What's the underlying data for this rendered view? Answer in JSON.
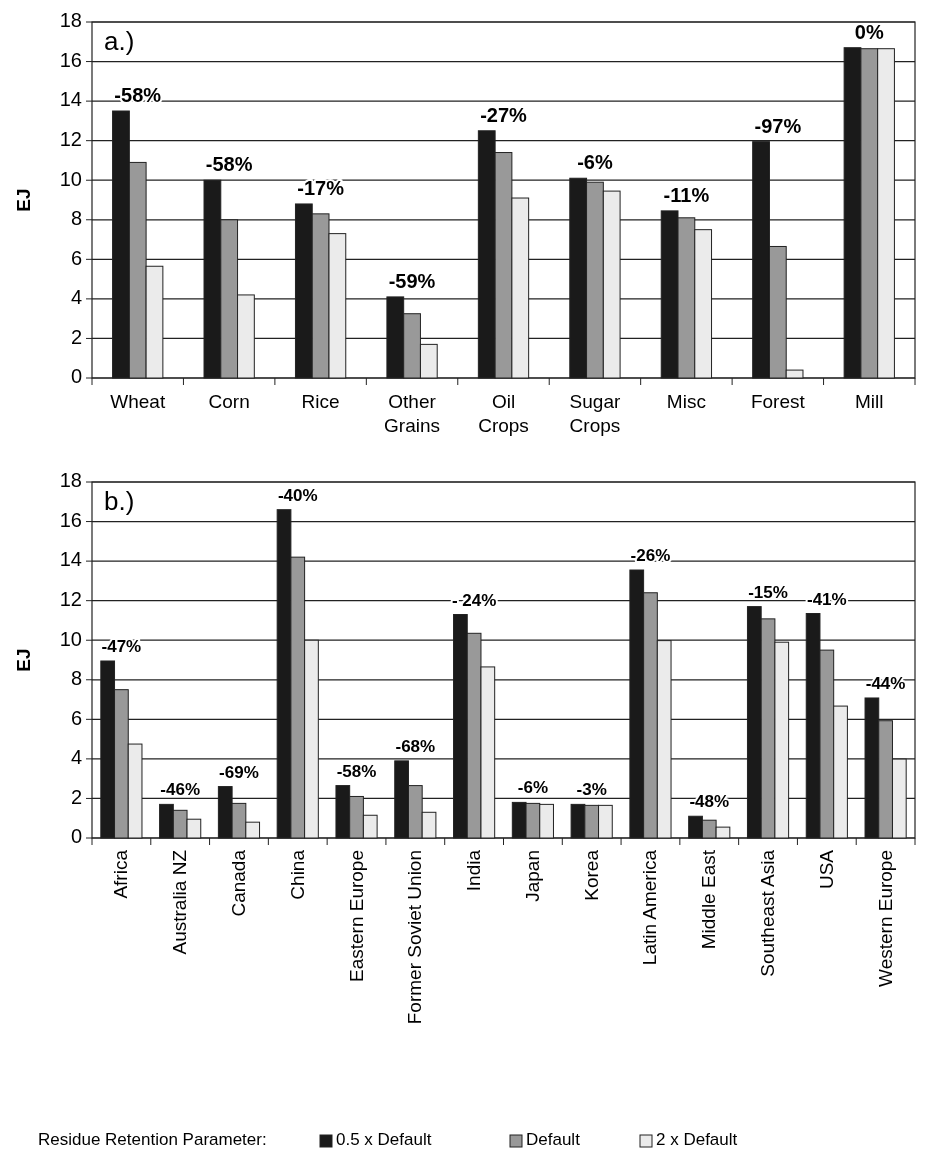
{
  "chart_data": [
    {
      "type": "bar",
      "ylabel": "EJ",
      "categories": [
        "Wheat",
        "Corn",
        "Rice",
        "Other Grains",
        "Oil Crops",
        "Sugar Crops",
        "Misc",
        "Forest",
        "Mill"
      ],
      "series": [
        {
          "color": "#1a1a1a",
          "values": [
            13.5,
            10.0,
            8.8,
            4.1,
            12.5,
            10.1,
            8.45,
            11.95,
            16.7
          ]
        },
        {
          "color": "#999999",
          "values": [
            10.9,
            8.0,
            8.3,
            3.25,
            11.4,
            9.9,
            8.1,
            6.65,
            16.65
          ]
        },
        {
          "color": "#ebebeb",
          "values": [
            5.65,
            4.2,
            7.3,
            1.7,
            9.1,
            9.45,
            7.5,
            0.4,
            16.65
          ]
        }
      ],
      "ylim": [
        0,
        18
      ],
      "yticks": [
        0,
        2,
        4,
        6,
        8,
        10,
        12,
        14,
        16,
        18
      ],
      "grid": "y",
      "legend": false,
      "annotations": [
        "a.)",
        "-58%",
        "-58%",
        "-17%",
        "-59%",
        "-27%",
        "-6%",
        "-11%",
        "-97%",
        "0%"
      ]
    },
    {
      "type": "bar",
      "ylabel": "EJ",
      "categories": [
        "Africa",
        "Australia NZ",
        "Canada",
        "China",
        "Eastern Europe",
        "Former Soviet Union",
        "India",
        "Japan",
        "Korea",
        "Latin America",
        "Middle East",
        "Southeast Asia",
        "USA",
        "Western Europe"
      ],
      "series": [
        {
          "name": "0.5 x Default",
          "color": "#1a1a1a",
          "values": [
            8.95,
            1.7,
            2.6,
            16.6,
            2.65,
            3.9,
            11.3,
            1.8,
            1.7,
            13.55,
            1.1,
            11.7,
            11.35,
            7.08
          ]
        },
        {
          "name": "Default",
          "color": "#999999",
          "values": [
            7.5,
            1.4,
            1.75,
            14.2,
            2.1,
            2.65,
            10.35,
            1.75,
            1.65,
            12.4,
            0.9,
            11.08,
            9.5,
            5.93
          ]
        },
        {
          "name": "2 x Default",
          "color": "#ebebeb",
          "values": [
            4.75,
            0.95,
            0.8,
            10.0,
            1.15,
            1.3,
            8.65,
            1.7,
            1.65,
            9.98,
            0.55,
            9.9,
            6.67,
            3.99
          ]
        }
      ],
      "ylim": [
        0,
        18
      ],
      "yticks": [
        0,
        2,
        4,
        6,
        8,
        10,
        12,
        14,
        16,
        18
      ],
      "grid": "y",
      "legend": "bottom",
      "legend_title": "Residue Retention Parameter:",
      "annotations": [
        "b.)",
        "-47%",
        "-46%",
        "-69%",
        "-40%",
        "-58%",
        "-68%",
        "- 24%",
        "-6%",
        "-3%",
        "-26%",
        "-48%",
        "-15%",
        "-41%",
        "-44%"
      ]
    }
  ]
}
